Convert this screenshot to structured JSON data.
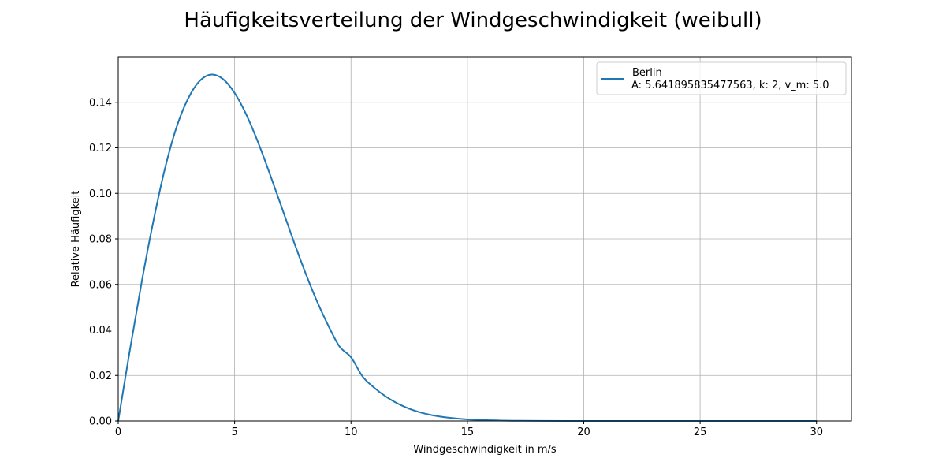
{
  "chart_data": {
    "type": "line",
    "title": "Häufigkeitsverteilung der Windgeschwindigkeit (weibull)",
    "xlabel": "Windgeschwindigkeit in m/s",
    "ylabel": "Relative Häufigkeit",
    "xlim": [
      0,
      31.5
    ],
    "ylim": [
      0,
      0.16
    ],
    "xticks": [
      0,
      5,
      10,
      15,
      20,
      25,
      30
    ],
    "yticks": [
      0.0,
      0.02,
      0.04,
      0.06,
      0.08,
      0.1,
      0.12,
      0.14
    ],
    "xtick_labels": [
      "0",
      "5",
      "10",
      "15",
      "20",
      "25",
      "30"
    ],
    "ytick_labels": [
      "0.00",
      "0.02",
      "0.04",
      "0.06",
      "0.08",
      "0.10",
      "0.12",
      "0.14"
    ],
    "grid": true,
    "legend_position": "upper right",
    "series": [
      {
        "name": "Berlin",
        "legend_detail": "A: 5.641895835477563, k: 2, v_m: 5.0",
        "color": "#1f77b4",
        "x": [
          0,
          0.5,
          1,
          1.5,
          2,
          2.5,
          3,
          3.5,
          4,
          4.5,
          5,
          5.5,
          6,
          6.5,
          7,
          7.5,
          8,
          8.5,
          9,
          9.5,
          10,
          10.5,
          11,
          11.5,
          12,
          12.5,
          13,
          13.5,
          14,
          15,
          16,
          17,
          18,
          20,
          22,
          25,
          30
        ],
        "y": [
          0.0,
          0.0311,
          0.0606,
          0.0873,
          0.1106,
          0.1289,
          0.1416,
          0.1494,
          0.1522,
          0.1502,
          0.1441,
          0.1346,
          0.1226,
          0.1089,
          0.0945,
          0.08,
          0.0662,
          0.0535,
          0.0424,
          0.0328,
          0.028,
          0.0195,
          0.0146,
          0.0107,
          0.0077,
          0.0054,
          0.0037,
          0.0025,
          0.0017,
          0.0007,
          0.0003,
          0.0001,
          4e-05,
          0.0,
          0.0,
          0.0,
          0.0
        ]
      }
    ]
  }
}
